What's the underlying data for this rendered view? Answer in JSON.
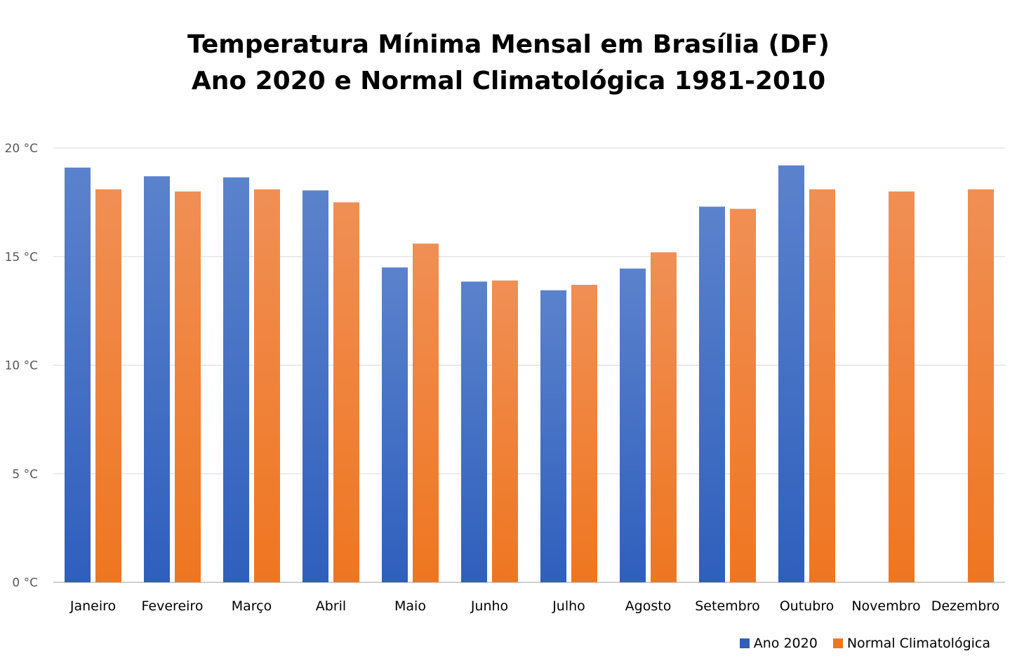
{
  "chart_data": {
    "type": "bar",
    "title": [
      "Temperatura Mínima Mensal em Brasília (DF)",
      "Ano 2020 e Normal Climatológica 1981-2010"
    ],
    "categories": [
      "Janeiro",
      "Fevereiro",
      "Março",
      "Abril",
      "Maio",
      "Junho",
      "Julho",
      "Agosto",
      "Setembro",
      "Outubro",
      "Novembro",
      "Dezembro"
    ],
    "series": [
      {
        "name": "Ano 2020",
        "color_top": "#5b82cc",
        "color_bottom": "#2f5fbd",
        "values": [
          19.1,
          18.7,
          18.65,
          18.05,
          14.5,
          13.85,
          13.45,
          14.45,
          17.3,
          19.2,
          null,
          null
        ]
      },
      {
        "name": "Normal Climatológica",
        "color_top": "#f08f55",
        "color_bottom": "#ef7620",
        "values": [
          18.1,
          18.0,
          18.1,
          17.5,
          15.6,
          13.9,
          13.7,
          15.2,
          17.2,
          18.1,
          18.0,
          18.1
        ]
      }
    ],
    "ylim": [
      0,
      20
    ],
    "yticks": [
      0,
      5,
      10,
      15,
      20
    ],
    "ytick_labels": [
      "0 °C",
      "5 °C",
      "10 °C",
      "15 °C",
      "20 °C"
    ],
    "grid": true,
    "legend_position": "bottom-right"
  }
}
